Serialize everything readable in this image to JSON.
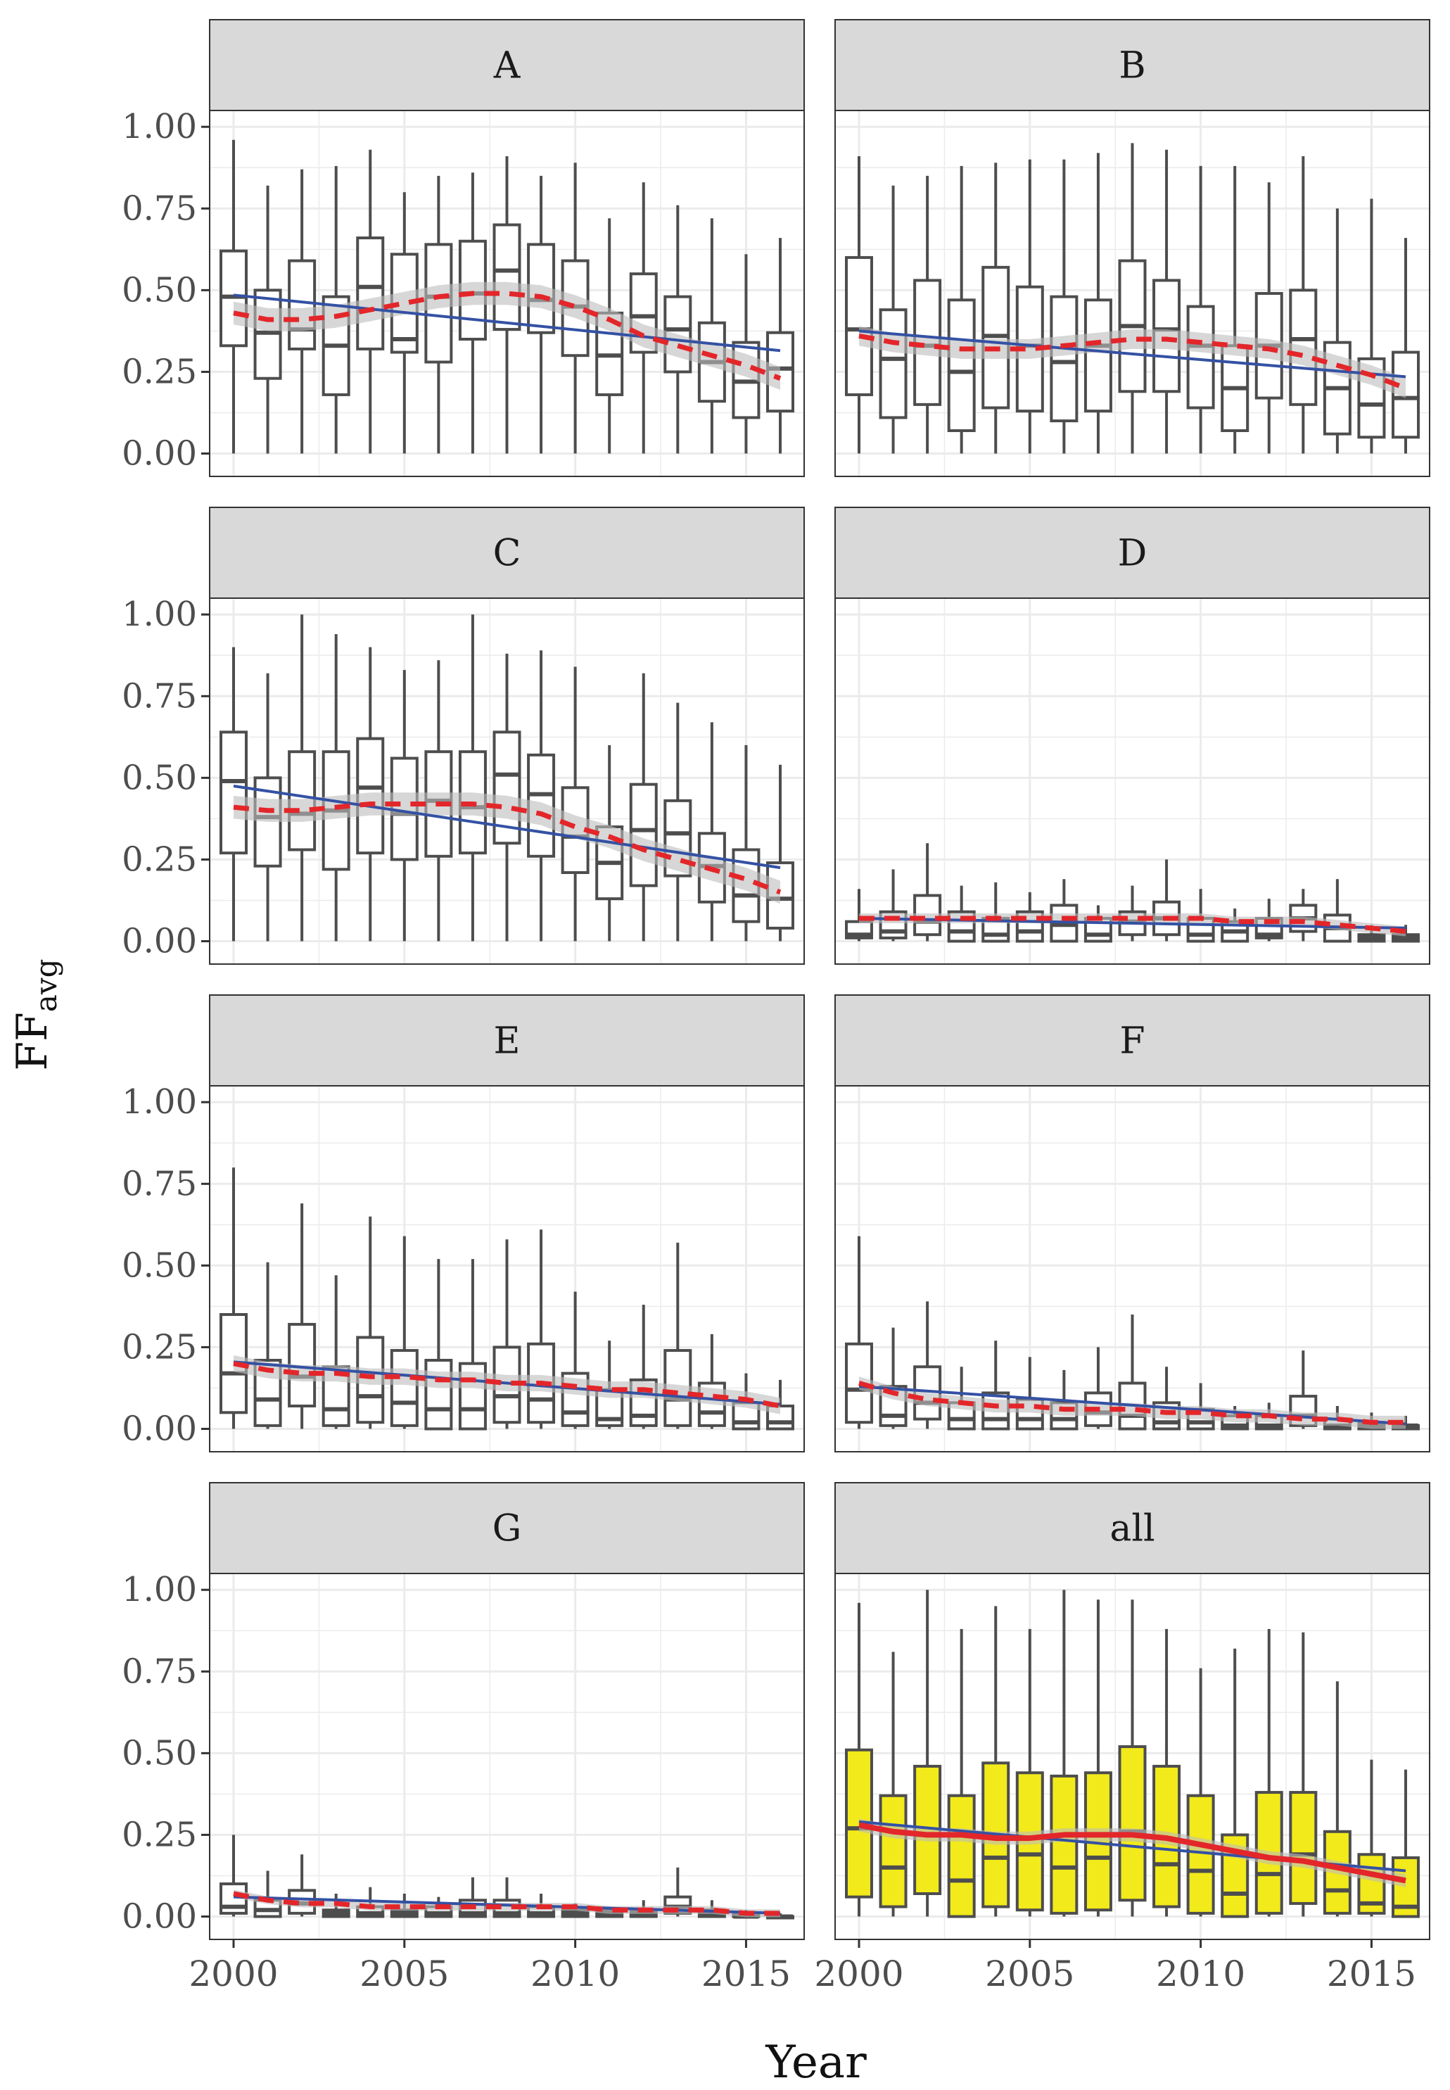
{
  "figure": {
    "xlabel": "Year",
    "ylabel_main": "FF",
    "ylabel_sub": "avg",
    "x_ticks": [
      "2000",
      "2005",
      "2010",
      "2015"
    ],
    "y_ticks": [
      "0.00",
      "0.25",
      "0.50",
      "0.75",
      "1.00"
    ]
  },
  "colors": {
    "box_default": "#ffffff",
    "box_highlight": "#f2ea1b",
    "box_stroke": "#4d4d4d",
    "linear_fit": "#3451a3",
    "smooth_fit": "#e3262a",
    "ci_band": "#bdbdbd",
    "strip": "#d9d9d9",
    "grid": "#ebebeb"
  },
  "chart_data": [
    {
      "type": "boxplot",
      "panel": "A",
      "x_unit": "year",
      "xlim": [
        1999.3,
        2016.7
      ],
      "ylim": [
        -0.07,
        1.05
      ],
      "years": [
        2000,
        2001,
        2002,
        2003,
        2004,
        2005,
        2006,
        2007,
        2008,
        2009,
        2010,
        2011,
        2012,
        2013,
        2014,
        2015,
        2016
      ],
      "min": [
        0,
        0,
        0,
        0,
        0,
        0,
        0,
        0,
        0,
        0,
        0,
        0,
        0,
        0,
        0,
        0,
        0
      ],
      "q1": [
        0.33,
        0.23,
        0.32,
        0.18,
        0.32,
        0.31,
        0.28,
        0.35,
        0.38,
        0.37,
        0.3,
        0.18,
        0.31,
        0.25,
        0.16,
        0.11,
        0.13
      ],
      "median": [
        0.48,
        0.37,
        0.38,
        0.33,
        0.51,
        0.35,
        0.48,
        0.49,
        0.56,
        0.47,
        0.45,
        0.3,
        0.42,
        0.38,
        0.28,
        0.22,
        0.26
      ],
      "q3": [
        0.62,
        0.5,
        0.59,
        0.48,
        0.66,
        0.61,
        0.64,
        0.65,
        0.7,
        0.64,
        0.59,
        0.43,
        0.55,
        0.48,
        0.4,
        0.34,
        0.37
      ],
      "max": [
        0.96,
        0.82,
        0.87,
        0.88,
        0.93,
        0.8,
        0.85,
        0.86,
        0.91,
        0.85,
        0.89,
        0.72,
        0.83,
        0.76,
        0.72,
        0.61,
        0.66
      ],
      "linear_fit": [
        0.485,
        0.315
      ],
      "smooth": [
        0.43,
        0.41,
        0.41,
        0.42,
        0.44,
        0.46,
        0.48,
        0.49,
        0.49,
        0.48,
        0.45,
        0.41,
        0.36,
        0.33,
        0.3,
        0.27,
        0.23
      ],
      "ci_halfwidth": 0.035,
      "highlight": false,
      "smooth_dashed": true
    },
    {
      "type": "boxplot",
      "panel": "B",
      "x_unit": "year",
      "xlim": [
        1999.3,
        2016.7
      ],
      "ylim": [
        -0.07,
        1.05
      ],
      "years": [
        2000,
        2001,
        2002,
        2003,
        2004,
        2005,
        2006,
        2007,
        2008,
        2009,
        2010,
        2011,
        2012,
        2013,
        2014,
        2015,
        2016
      ],
      "min": [
        0,
        0,
        0,
        0,
        0,
        0,
        0,
        0,
        0,
        0,
        0,
        0,
        0,
        0,
        0,
        0,
        0
      ],
      "q1": [
        0.18,
        0.11,
        0.15,
        0.07,
        0.14,
        0.13,
        0.1,
        0.13,
        0.19,
        0.19,
        0.14,
        0.07,
        0.17,
        0.15,
        0.06,
        0.05,
        0.05
      ],
      "median": [
        0.38,
        0.29,
        0.33,
        0.25,
        0.36,
        0.33,
        0.28,
        0.33,
        0.39,
        0.38,
        0.33,
        0.2,
        0.33,
        0.35,
        0.2,
        0.15,
        0.17
      ],
      "q3": [
        0.6,
        0.44,
        0.53,
        0.47,
        0.57,
        0.51,
        0.48,
        0.47,
        0.59,
        0.53,
        0.45,
        0.33,
        0.49,
        0.5,
        0.34,
        0.29,
        0.31
      ],
      "max": [
        0.91,
        0.82,
        0.85,
        0.88,
        0.89,
        0.9,
        0.9,
        0.92,
        0.95,
        0.93,
        0.88,
        0.88,
        0.83,
        0.91,
        0.75,
        0.78,
        0.66
      ],
      "linear_fit": [
        0.375,
        0.235
      ],
      "smooth": [
        0.36,
        0.34,
        0.33,
        0.32,
        0.32,
        0.32,
        0.33,
        0.34,
        0.35,
        0.35,
        0.34,
        0.33,
        0.32,
        0.3,
        0.27,
        0.24,
        0.2
      ],
      "ci_halfwidth": 0.03,
      "highlight": false,
      "smooth_dashed": true
    },
    {
      "type": "boxplot",
      "panel": "C",
      "x_unit": "year",
      "xlim": [
        1999.3,
        2016.7
      ],
      "ylim": [
        -0.07,
        1.05
      ],
      "years": [
        2000,
        2001,
        2002,
        2003,
        2004,
        2005,
        2006,
        2007,
        2008,
        2009,
        2010,
        2011,
        2012,
        2013,
        2014,
        2015,
        2016
      ],
      "min": [
        0,
        0,
        0,
        0,
        0,
        0,
        0,
        0,
        0,
        0,
        0,
        0,
        0,
        0,
        0,
        0,
        0
      ],
      "q1": [
        0.27,
        0.23,
        0.28,
        0.22,
        0.27,
        0.25,
        0.26,
        0.27,
        0.3,
        0.26,
        0.21,
        0.13,
        0.17,
        0.2,
        0.12,
        0.06,
        0.04
      ],
      "median": [
        0.49,
        0.38,
        0.39,
        0.4,
        0.47,
        0.39,
        0.43,
        0.41,
        0.51,
        0.45,
        0.32,
        0.24,
        0.34,
        0.33,
        0.23,
        0.14,
        0.13
      ],
      "q3": [
        0.64,
        0.5,
        0.58,
        0.58,
        0.62,
        0.56,
        0.58,
        0.58,
        0.64,
        0.57,
        0.47,
        0.35,
        0.48,
        0.43,
        0.33,
        0.28,
        0.24
      ],
      "max": [
        0.9,
        0.82,
        1.0,
        0.94,
        0.9,
        0.83,
        0.86,
        1.0,
        0.88,
        0.89,
        0.84,
        0.6,
        0.82,
        0.73,
        0.67,
        0.6,
        0.54
      ],
      "linear_fit": [
        0.475,
        0.225
      ],
      "smooth": [
        0.41,
        0.4,
        0.4,
        0.41,
        0.42,
        0.42,
        0.42,
        0.42,
        0.41,
        0.39,
        0.35,
        0.32,
        0.28,
        0.25,
        0.22,
        0.19,
        0.15
      ],
      "ci_halfwidth": 0.035,
      "highlight": false,
      "smooth_dashed": true
    },
    {
      "type": "boxplot",
      "panel": "D",
      "x_unit": "year",
      "xlim": [
        1999.3,
        2016.7
      ],
      "ylim": [
        -0.07,
        1.05
      ],
      "years": [
        2000,
        2001,
        2002,
        2003,
        2004,
        2005,
        2006,
        2007,
        2008,
        2009,
        2010,
        2011,
        2012,
        2013,
        2014,
        2015,
        2016
      ],
      "min": [
        0,
        0,
        0,
        0,
        0,
        0,
        0,
        0,
        0,
        0,
        0,
        0,
        0,
        0,
        0,
        0,
        0
      ],
      "q1": [
        0.01,
        0.01,
        0.02,
        0.0,
        0.0,
        0.0,
        0.0,
        0.0,
        0.02,
        0.02,
        0.0,
        0.0,
        0.01,
        0.03,
        0.0,
        0.0,
        0.0
      ],
      "median": [
        0.02,
        0.03,
        0.06,
        0.03,
        0.02,
        0.03,
        0.05,
        0.02,
        0.06,
        0.07,
        0.02,
        0.03,
        0.02,
        0.07,
        0.04,
        0.01,
        0.01
      ],
      "q3": [
        0.06,
        0.09,
        0.14,
        0.09,
        0.07,
        0.09,
        0.11,
        0.07,
        0.09,
        0.12,
        0.07,
        0.06,
        0.07,
        0.11,
        0.08,
        0.02,
        0.02
      ],
      "max": [
        0.16,
        0.22,
        0.3,
        0.17,
        0.18,
        0.15,
        0.19,
        0.11,
        0.17,
        0.25,
        0.16,
        0.1,
        0.13,
        0.16,
        0.19,
        0.05,
        0.05
      ],
      "linear_fit": [
        0.07,
        0.04
      ],
      "smooth": [
        0.07,
        0.07,
        0.07,
        0.07,
        0.07,
        0.07,
        0.07,
        0.07,
        0.07,
        0.07,
        0.07,
        0.06,
        0.06,
        0.06,
        0.05,
        0.04,
        0.03
      ],
      "ci_halfwidth": 0.015,
      "highlight": false,
      "smooth_dashed": true
    },
    {
      "type": "boxplot",
      "panel": "E",
      "x_unit": "year",
      "xlim": [
        1999.3,
        2016.7
      ],
      "ylim": [
        -0.07,
        1.05
      ],
      "years": [
        2000,
        2001,
        2002,
        2003,
        2004,
        2005,
        2006,
        2007,
        2008,
        2009,
        2010,
        2011,
        2012,
        2013,
        2014,
        2015,
        2016
      ],
      "min": [
        0,
        0,
        0,
        0,
        0,
        0,
        0,
        0,
        0,
        0,
        0,
        0,
        0,
        0,
        0,
        0,
        0
      ],
      "q1": [
        0.05,
        0.01,
        0.07,
        0.01,
        0.02,
        0.01,
        0.0,
        0.0,
        0.02,
        0.02,
        0.01,
        0.01,
        0.01,
        0.01,
        0.01,
        0.0,
        0.0
      ],
      "median": [
        0.17,
        0.09,
        0.16,
        0.06,
        0.1,
        0.08,
        0.06,
        0.06,
        0.1,
        0.09,
        0.05,
        0.03,
        0.04,
        0.09,
        0.05,
        0.02,
        0.02
      ],
      "q3": [
        0.35,
        0.21,
        0.32,
        0.19,
        0.28,
        0.24,
        0.21,
        0.2,
        0.25,
        0.26,
        0.17,
        0.12,
        0.15,
        0.24,
        0.14,
        0.08,
        0.07
      ],
      "max": [
        0.8,
        0.51,
        0.69,
        0.47,
        0.65,
        0.59,
        0.52,
        0.52,
        0.58,
        0.61,
        0.42,
        0.27,
        0.38,
        0.57,
        0.29,
        0.17,
        0.15
      ],
      "linear_fit": [
        0.205,
        0.075
      ],
      "smooth": [
        0.2,
        0.18,
        0.17,
        0.17,
        0.16,
        0.16,
        0.15,
        0.15,
        0.14,
        0.14,
        0.13,
        0.12,
        0.12,
        0.11,
        0.1,
        0.09,
        0.07
      ],
      "ci_halfwidth": 0.025,
      "highlight": false,
      "smooth_dashed": true
    },
    {
      "type": "boxplot",
      "panel": "F",
      "x_unit": "year",
      "xlim": [
        1999.3,
        2016.7
      ],
      "ylim": [
        -0.07,
        1.05
      ],
      "years": [
        2000,
        2001,
        2002,
        2003,
        2004,
        2005,
        2006,
        2007,
        2008,
        2009,
        2010,
        2011,
        2012,
        2013,
        2014,
        2015,
        2016
      ],
      "min": [
        0,
        0,
        0,
        0,
        0,
        0,
        0,
        0,
        0,
        0,
        0,
        0,
        0,
        0,
        0,
        0,
        0
      ],
      "q1": [
        0.02,
        0.01,
        0.03,
        0.0,
        0.0,
        0.0,
        0.0,
        0.01,
        0.0,
        0.0,
        0.0,
        0.0,
        0.0,
        0.01,
        0.0,
        0.0,
        0.0
      ],
      "median": [
        0.12,
        0.04,
        0.08,
        0.03,
        0.03,
        0.03,
        0.03,
        0.05,
        0.04,
        0.02,
        0.02,
        0.01,
        0.01,
        0.04,
        0.01,
        0.01,
        0.01
      ],
      "q3": [
        0.26,
        0.13,
        0.19,
        0.08,
        0.11,
        0.09,
        0.08,
        0.11,
        0.14,
        0.08,
        0.06,
        0.04,
        0.04,
        0.1,
        0.03,
        0.02,
        0.01
      ],
      "max": [
        0.59,
        0.31,
        0.39,
        0.19,
        0.27,
        0.22,
        0.18,
        0.25,
        0.35,
        0.19,
        0.14,
        0.07,
        0.08,
        0.24,
        0.07,
        0.05,
        0.04
      ],
      "linear_fit": [
        0.13,
        0.015
      ],
      "smooth": [
        0.14,
        0.11,
        0.09,
        0.08,
        0.07,
        0.07,
        0.06,
        0.06,
        0.06,
        0.05,
        0.05,
        0.04,
        0.04,
        0.03,
        0.03,
        0.02,
        0.02
      ],
      "ci_halfwidth": 0.02,
      "highlight": false,
      "smooth_dashed": true
    },
    {
      "type": "boxplot",
      "panel": "G",
      "x_unit": "year",
      "xlim": [
        1999.3,
        2016.7
      ],
      "ylim": [
        -0.07,
        1.05
      ],
      "years": [
        2000,
        2001,
        2002,
        2003,
        2004,
        2005,
        2006,
        2007,
        2008,
        2009,
        2010,
        2011,
        2012,
        2013,
        2014,
        2015,
        2016
      ],
      "min": [
        0,
        0,
        0,
        0,
        0,
        0,
        0,
        0,
        0,
        0,
        0,
        0,
        0,
        0,
        0,
        0,
        0
      ],
      "q1": [
        0.01,
        0.0,
        0.01,
        0.0,
        0.0,
        0.0,
        0.0,
        0.0,
        0.0,
        0.0,
        0.0,
        0.0,
        0.0,
        0.01,
        0.0,
        0.0,
        0.0
      ],
      "median": [
        0.03,
        0.02,
        0.04,
        0.01,
        0.01,
        0.01,
        0.01,
        0.01,
        0.01,
        0.01,
        0.01,
        0.01,
        0.01,
        0.03,
        0.01,
        0.0,
        0.0
      ],
      "q3": [
        0.1,
        0.05,
        0.08,
        0.02,
        0.03,
        0.02,
        0.03,
        0.05,
        0.05,
        0.03,
        0.02,
        0.02,
        0.02,
        0.06,
        0.02,
        0.01,
        0.0
      ],
      "max": [
        0.25,
        0.14,
        0.19,
        0.07,
        0.09,
        0.07,
        0.06,
        0.12,
        0.12,
        0.07,
        0.04,
        0.03,
        0.05,
        0.15,
        0.05,
        0.02,
        0.01
      ],
      "linear_fit": [
        0.06,
        0.01
      ],
      "smooth": [
        0.07,
        0.05,
        0.04,
        0.04,
        0.03,
        0.03,
        0.03,
        0.03,
        0.03,
        0.03,
        0.03,
        0.02,
        0.02,
        0.02,
        0.02,
        0.01,
        0.01
      ],
      "ci_halfwidth": 0.012,
      "highlight": false,
      "smooth_dashed": true
    },
    {
      "type": "boxplot",
      "panel": "all",
      "x_unit": "year",
      "xlim": [
        1999.3,
        2016.7
      ],
      "ylim": [
        -0.07,
        1.05
      ],
      "years": [
        2000,
        2001,
        2002,
        2003,
        2004,
        2005,
        2006,
        2007,
        2008,
        2009,
        2010,
        2011,
        2012,
        2013,
        2014,
        2015,
        2016
      ],
      "min": [
        0,
        0,
        0,
        0,
        0,
        0,
        0,
        0,
        0,
        0,
        0,
        0,
        0,
        0,
        0,
        0,
        0
      ],
      "q1": [
        0.06,
        0.03,
        0.07,
        0.0,
        0.03,
        0.02,
        0.01,
        0.02,
        0.05,
        0.03,
        0.01,
        0.0,
        0.01,
        0.04,
        0.01,
        0.01,
        0.0
      ],
      "median": [
        0.27,
        0.15,
        0.25,
        0.11,
        0.18,
        0.19,
        0.15,
        0.18,
        0.26,
        0.16,
        0.14,
        0.07,
        0.13,
        0.19,
        0.08,
        0.04,
        0.03
      ],
      "q3": [
        0.51,
        0.37,
        0.46,
        0.37,
        0.47,
        0.44,
        0.43,
        0.44,
        0.52,
        0.46,
        0.37,
        0.25,
        0.38,
        0.38,
        0.26,
        0.19,
        0.18
      ],
      "max": [
        0.96,
        0.81,
        1.0,
        0.88,
        0.95,
        0.88,
        1.0,
        0.97,
        0.97,
        0.88,
        0.76,
        0.82,
        0.88,
        0.87,
        0.72,
        0.48,
        0.45
      ],
      "linear_fit": [
        0.29,
        0.14
      ],
      "smooth": [
        0.28,
        0.26,
        0.25,
        0.25,
        0.24,
        0.24,
        0.25,
        0.25,
        0.25,
        0.24,
        0.22,
        0.2,
        0.18,
        0.17,
        0.15,
        0.13,
        0.11
      ],
      "ci_halfwidth": 0.02,
      "highlight": true,
      "smooth_dashed": false
    }
  ]
}
